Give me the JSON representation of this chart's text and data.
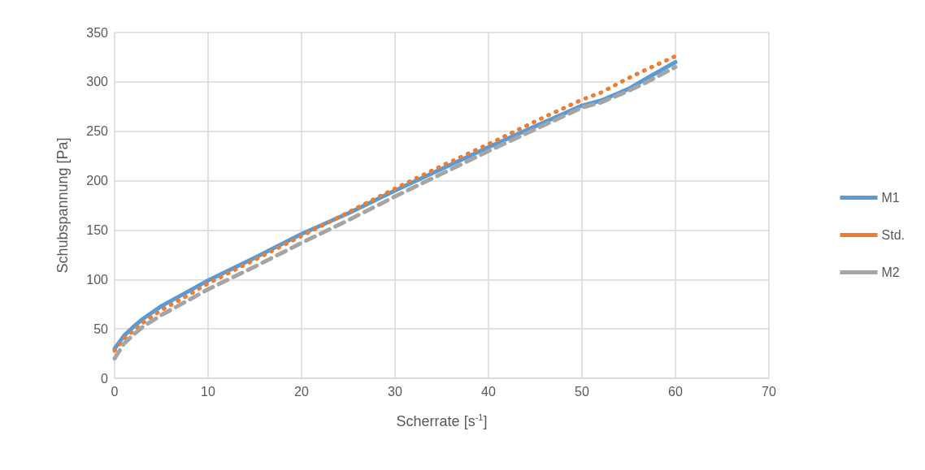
{
  "chart_data": {
    "type": "line",
    "xlabel": "Scherrate [s$^{-1}$]",
    "ylabel": "Schubspannung [Pa]",
    "x": [
      0,
      1,
      2,
      3,
      5,
      7.5,
      10,
      15,
      20,
      25,
      30,
      35,
      40,
      45,
      50,
      52,
      55,
      57,
      60
    ],
    "series": [
      {
        "name": "M1",
        "color": "#5b9bd5",
        "line_style": "solid",
        "values": [
          30,
          43,
          52,
          60,
          73,
          86,
          99,
          122,
          146,
          167,
          190,
          212,
          234,
          255,
          276,
          281,
          293,
          304,
          320
        ]
      },
      {
        "name": "Std.",
        "color": "#ed7d31",
        "line_style": "dotted",
        "values": [
          28,
          40,
          48,
          56,
          69,
          82,
          96,
          120,
          144,
          168,
          192,
          215,
          237,
          260,
          282,
          289,
          304,
          313,
          326
        ]
      },
      {
        "name": "M2",
        "color": "#a5a5a5",
        "line_style": "dashed",
        "values": [
          20,
          35,
          44,
          52,
          64,
          77,
          90,
          113,
          137,
          160,
          184,
          207,
          230,
          252,
          274,
          279,
          291,
          300,
          315
        ]
      }
    ],
    "xlim": [
      0,
      70
    ],
    "xticks": [
      0,
      10,
      20,
      30,
      40,
      50,
      60,
      70
    ],
    "ylim": [
      0,
      350
    ],
    "yticks": [
      0,
      50,
      100,
      150,
      200,
      250,
      300,
      350
    ],
    "grid": true,
    "legend": "right",
    "marker": "none"
  }
}
